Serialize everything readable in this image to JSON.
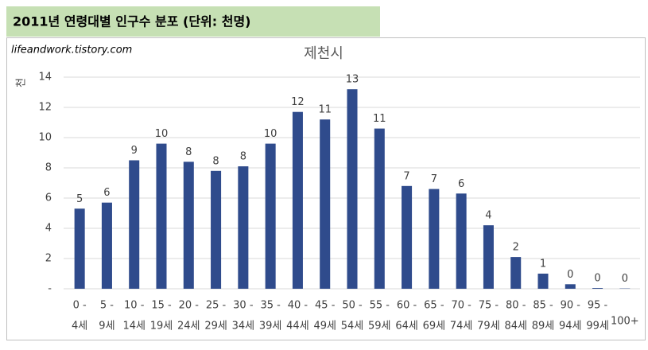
{
  "header": {
    "title": "2011년 연령대별 인구수 분포 (단위: 천명)"
  },
  "watermark": "lifeandwork.tistory.com",
  "chart_data": {
    "type": "bar",
    "title": "제천시",
    "y_label": "천",
    "categories": [
      [
        "0 -",
        "4세"
      ],
      [
        "5 -",
        "9세"
      ],
      [
        "10 -",
        "14세"
      ],
      [
        "15 -",
        "19세"
      ],
      [
        "20 -",
        "24세"
      ],
      [
        "25 -",
        "29세"
      ],
      [
        "30 -",
        "34세"
      ],
      [
        "35 -",
        "39세"
      ],
      [
        "40 -",
        "44세"
      ],
      [
        "45 -",
        "49세"
      ],
      [
        "50 -",
        "54세"
      ],
      [
        "55 -",
        "59세"
      ],
      [
        "60 -",
        "64세"
      ],
      [
        "65 -",
        "69세"
      ],
      [
        "70 -",
        "74세"
      ],
      [
        "75 -",
        "79세"
      ],
      [
        "80 -",
        "84세"
      ],
      [
        "85 -",
        "89세"
      ],
      [
        "90 -",
        "94세"
      ],
      [
        "95 -",
        "99세"
      ],
      [
        "100+"
      ]
    ],
    "values": [
      5.3,
      5.7,
      8.5,
      9.6,
      8.4,
      7.8,
      8.1,
      9.6,
      11.7,
      11.2,
      13.2,
      10.6,
      6.8,
      6.6,
      6.3,
      4.2,
      2.1,
      1.0,
      0.3,
      0.05,
      0.02
    ],
    "value_labels": [
      "5",
      "6",
      "9",
      "10",
      "8",
      "8",
      "8",
      "10",
      "12",
      "11",
      "13",
      "11",
      "7",
      "7",
      "6",
      "4",
      "2",
      "1",
      "0",
      "0",
      "0"
    ],
    "color": "#2f4b8c",
    "ylim": [
      0,
      14
    ],
    "yticks": [
      {
        "value": 0,
        "label": "-"
      },
      2,
      4,
      6,
      8,
      10,
      12,
      14
    ],
    "grid": true
  }
}
